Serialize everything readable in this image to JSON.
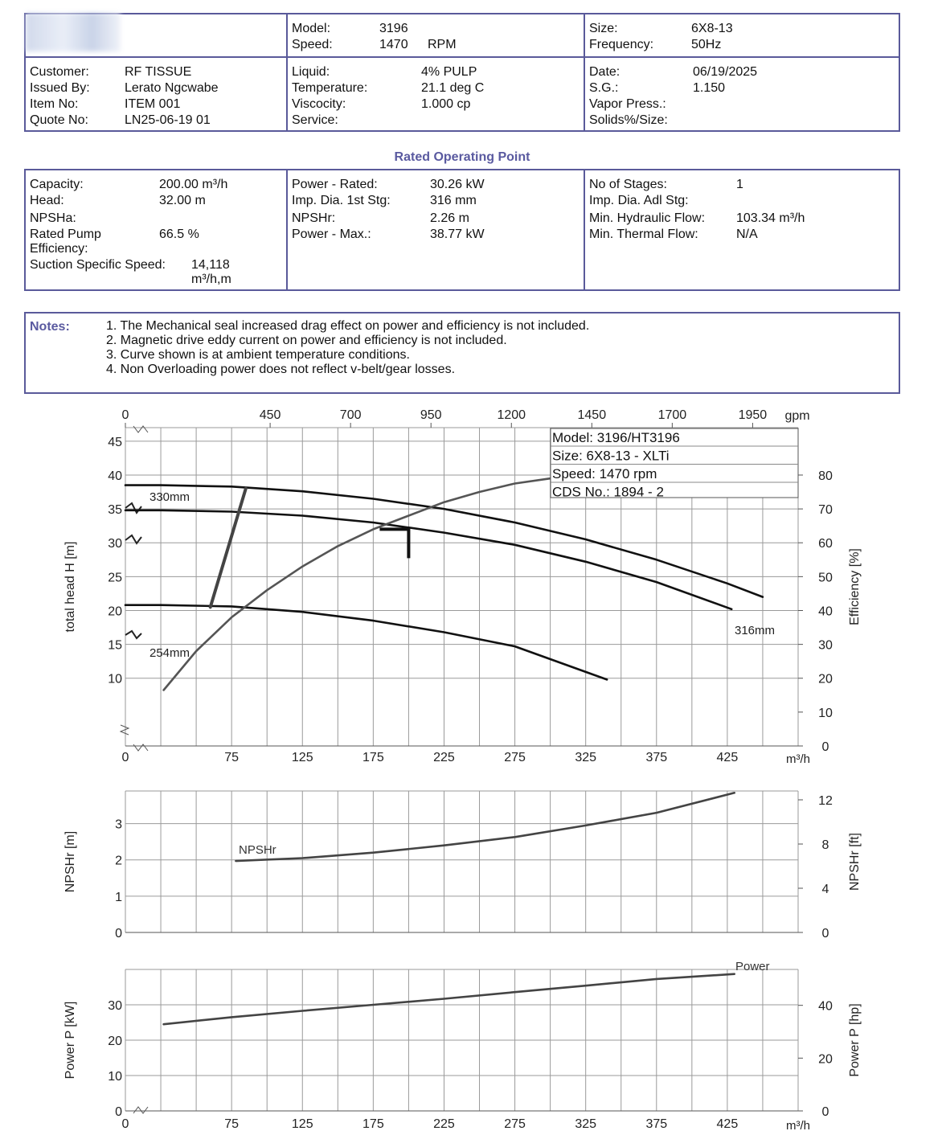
{
  "header": {
    "model_label": "Model:",
    "model": "3196",
    "speed_label": "Speed:",
    "speed": "1470",
    "speed_unit": "RPM",
    "size_label": "Size:",
    "size": "6X8-13",
    "frequency_label": "Frequency:",
    "frequency": "50Hz"
  },
  "customer": {
    "customer_label": "Customer:",
    "customer": "RF TISSUE",
    "issued_label": "Issued By:",
    "issued": "Lerato Ngcwabe",
    "item_label": "Item No:",
    "item": "ITEM 001",
    "quote_label": "Quote No:",
    "quote": "LN25-06-19 01"
  },
  "liquid": {
    "liquid_label": "Liquid:",
    "liquid": "4% PULP",
    "temp_label": "Temperature:",
    "temp": "21.1 deg C",
    "visc_label": "Viscocity:",
    "visc": "1.000 cp",
    "service_label": "Service:"
  },
  "dates": {
    "date_label": "Date:",
    "date": "06/19/2025",
    "sg_label": "S.G.:",
    "sg": "1.150",
    "vapor_label": "Vapor Press.:",
    "solids_label": "Solids%/Size:"
  },
  "rated": {
    "title": "Rated Operating Point",
    "capacity_label": "Capacity:",
    "capacity": "200.00 m³/h",
    "head_label": "Head:",
    "head": "32.00 m",
    "npsha_label": "NPSHa:",
    "eff_label1": "Rated Pump",
    "eff_label2": "Efficiency:",
    "eff": "66.5 %",
    "sss_label": "Suction Specific Speed:",
    "sss": "14,118",
    "sss_unit": "m³/h,m",
    "power_rated_label": "Power - Rated:",
    "power_rated": "30.26 kW",
    "imp_label": "Imp. Dia. 1st Stg:",
    "imp": "316 mm",
    "npshr_label": "NPSHr:",
    "npshr": "2.26 m",
    "power_max_label": "Power - Max.:",
    "power_max": "38.77 kW",
    "stages_label": "No of Stages:",
    "stages": "1",
    "imp_adl_label": "Imp. Dia. Adl Stg:",
    "min_hyd_label": "Min. Hydraulic Flow:",
    "min_hyd": "103.34 m³/h",
    "min_therm_label": "Min. Thermal Flow:",
    "min_therm": "N/A"
  },
  "notes": {
    "label": "Notes:",
    "items": [
      "1. The Mechanical seal increased drag effect on power and efficiency is not included.",
      "2. Magnetic drive eddy current on power and efficiency is not included.",
      "3. Curve shown is at ambient temperature conditions.",
      "4. Non Overloading power does not reflect v-belt/gear losses."
    ]
  },
  "chart_data": [
    {
      "type": "line",
      "legend_box": [
        "Model: 3196/HT3196",
        "Size: 6X8-13 - XLTi",
        "Speed: 1470 rpm",
        "CDS No.: 1894 - 2"
      ],
      "xlabel": "m³/h",
      "x_ticks": [
        0,
        75,
        125,
        175,
        225,
        275,
        325,
        375,
        425
      ],
      "x2label": "gpm",
      "x2_ticks": [
        0,
        450,
        700,
        950,
        1200,
        1450,
        1700,
        1950
      ],
      "ylabel": "total head H [m]",
      "y_ticks": [
        10,
        15,
        20,
        25,
        30,
        35,
        40,
        45
      ],
      "ylim": [
        0,
        47
      ],
      "y2label": "Efficiency [%]",
      "y2_ticks": [
        0,
        10,
        20,
        30,
        40,
        50,
        60,
        70,
        80
      ],
      "ylim2": [
        0,
        94
      ],
      "grid": true,
      "rated_point": {
        "x": 200,
        "y": 32
      },
      "series": [
        {
          "name": "330mm",
          "axis": "head",
          "x": [
            0,
            25,
            75,
            125,
            175,
            225,
            275,
            325,
            375,
            425,
            450
          ],
          "y": [
            38.5,
            38.5,
            38.3,
            37.6,
            36.5,
            35.0,
            33.0,
            30.5,
            27.5,
            24.0,
            22.0
          ]
        },
        {
          "name": "316mm",
          "axis": "head",
          "x": [
            0,
            25,
            75,
            125,
            175,
            225,
            275,
            325,
            375,
            428
          ],
          "y": [
            34.8,
            34.8,
            34.6,
            34.0,
            33.0,
            31.5,
            29.7,
            27.2,
            24.2,
            20.2
          ]
        },
        {
          "name": "254mm",
          "axis": "head",
          "x": [
            0,
            25,
            75,
            125,
            175,
            225,
            275,
            340
          ],
          "y": [
            20.8,
            20.8,
            20.6,
            19.8,
            18.5,
            16.8,
            14.7,
            9.8
          ]
        },
        {
          "x": [
            27,
            50,
            75,
            100,
            125,
            150,
            175,
            200,
            225,
            250,
            275,
            300,
            325
          ],
          "y": [
            16.5,
            28,
            38,
            46,
            53,
            59,
            64,
            68,
            72,
            75,
            77.5,
            79,
            80
          ],
          "axis": "efficiency"
        },
        {
          "x": [
            60,
            85
          ],
          "y": [
            20.5,
            38
          ],
          "axis": "head"
        }
      ]
    },
    {
      "type": "line",
      "ylabel": "NPSHr [m]",
      "y_ticks": [
        0,
        1,
        2,
        3
      ],
      "ylim": [
        0,
        3.9
      ],
      "y2label": "NPSHr [ft]",
      "y2_ticks": [
        0,
        4,
        8,
        12
      ],
      "ylim2": [
        0,
        12.8
      ],
      "grid": true,
      "series": [
        {
          "name": "NPSHr",
          "x": [
            78,
            125,
            175,
            225,
            275,
            325,
            375,
            430
          ],
          "y": [
            1.97,
            2.05,
            2.2,
            2.4,
            2.63,
            2.95,
            3.3,
            3.85
          ]
        }
      ]
    },
    {
      "type": "line",
      "xlabel": "m³/h",
      "x_ticks": [
        0,
        75,
        125,
        175,
        225,
        275,
        325,
        375,
        425
      ],
      "ylabel": "Power P [kW]",
      "y_ticks": [
        0,
        10,
        20,
        30
      ],
      "ylim": [
        0,
        40
      ],
      "y2label": "Power P [hp]",
      "y2_ticks": [
        0,
        20,
        40
      ],
      "ylim2": [
        0,
        53.6
      ],
      "grid": true,
      "series": [
        {
          "name": "Power",
          "x": [
            27,
            75,
            125,
            175,
            225,
            275,
            325,
            375,
            430
          ],
          "y": [
            24.5,
            26.5,
            28.3,
            30.0,
            31.7,
            33.6,
            35.4,
            37.3,
            38.7
          ]
        }
      ]
    }
  ]
}
